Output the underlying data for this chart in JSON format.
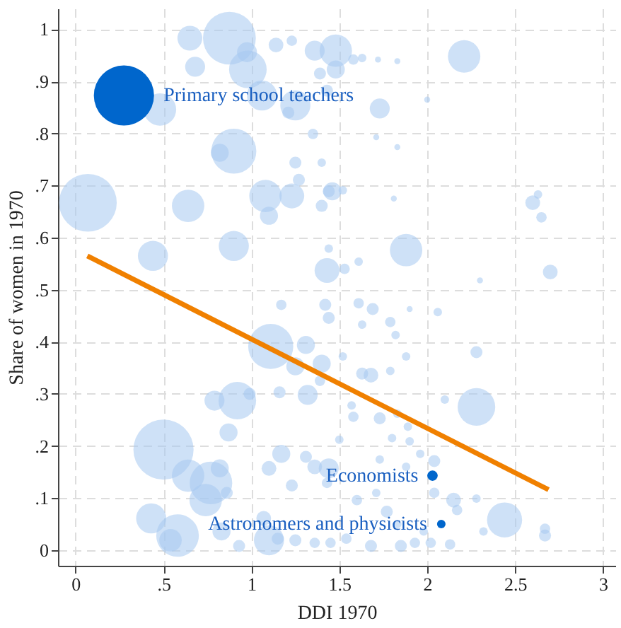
{
  "chart_data": {
    "type": "bubble",
    "xlabel": "DDI 1970",
    "ylabel": "Share of women in 1970",
    "xlim": [
      -0.1,
      3.07
    ],
    "ylim": [
      -0.03,
      1.04
    ],
    "xticks": [
      0,
      {
        "value": 0.5,
        "label": ".5"
      },
      1,
      1.5,
      2,
      2.5,
      3
    ],
    "yticks": [
      0,
      {
        "value": 0.1,
        "label": ".1"
      },
      {
        "value": 0.2,
        "label": ".2"
      },
      {
        "value": 0.3,
        "label": ".3"
      },
      {
        "value": 0.4,
        "label": ".4"
      },
      {
        "value": 0.5,
        "label": ".5"
      },
      {
        "value": 0.6,
        "label": ".6"
      },
      {
        "value": 0.7,
        "label": ".7"
      },
      {
        "value": 0.8,
        "label": ".8"
      },
      {
        "value": 0.9,
        "label": ".9"
      },
      1
    ],
    "grid": true,
    "marker": "circle",
    "series": [
      {
        "color": "#a6c8f0",
        "x": [
          0.65,
          0.875,
          0.68,
          0.975,
          0.98,
          1.14,
          1.23,
          1.36,
          0.48,
          1.06,
          1.25,
          0.9,
          0.82,
          1.25,
          1.35,
          1.4,
          1.27,
          0.07,
          0.64,
          1.08,
          1.23,
          1.1,
          1.4,
          1.44,
          0.44,
          0.9,
          1.44,
          1.43,
          1.39,
          1.43,
          1.21,
          1.48,
          1.48,
          1.58,
          1.63,
          1.72,
          1.83,
          2.21,
          1.73,
          1.71,
          1.83,
          2.0,
          1.46,
          1.52,
          1.81,
          2.6,
          2.63,
          2.65,
          1.88,
          1.61,
          1.53,
          2.7,
          2.3,
          1.17,
          1.42,
          1.44,
          1.11,
          1.31,
          1.25,
          1.4,
          1.39,
          1.16,
          1.32,
          0.92,
          0.79,
          0.99,
          0.87,
          0.5,
          0.64,
          0.82,
          0.77,
          0.74,
          0.86,
          1.17,
          1.1,
          1.31,
          1.36,
          1.23,
          1.43,
          0.43,
          0.58,
          0.54,
          0.83,
          0.93,
          1.07,
          1.1,
          1.15,
          1.25,
          1.36,
          1.61,
          1.69,
          1.9,
          2.06,
          1.63,
          1.79,
          1.82,
          2.28,
          1.88,
          1.52,
          1.63,
          1.68,
          1.79,
          2.1,
          2.28,
          1.57,
          1.73,
          1.58,
          1.83,
          1.89,
          1.8,
          1.9,
          1.5,
          1.44,
          1.96,
          1.73,
          2.04,
          1.88,
          2.04,
          2.15,
          2.17,
          2.28,
          2.44,
          2.67,
          2.67,
          2.32,
          1.98,
          1.83,
          1.77,
          1.6,
          1.71,
          1.93,
          1.85,
          1.68,
          2.13,
          2.02,
          1.54,
          1.45
        ],
        "values": [
          0.983,
          0.983,
          0.928,
          0.956,
          0.923,
          0.97,
          0.978,
          0.959,
          0.846,
          0.873,
          0.854,
          0.766,
          0.763,
          0.744,
          0.799,
          0.744,
          0.711,
          0.667,
          0.661,
          0.68,
          0.68,
          0.642,
          0.661,
          0.689,
          0.565,
          0.584,
          0.579,
          0.537,
          0.915,
          0.882,
          0.84,
          0.959,
          0.923,
          0.942,
          0.945,
          0.942,
          0.939,
          0.948,
          0.848,
          0.793,
          0.774,
          0.865,
          0.689,
          0.691,
          0.675,
          0.667,
          0.683,
          0.639,
          0.576,
          0.554,
          0.54,
          0.534,
          0.518,
          0.471,
          0.471,
          0.446,
          0.391,
          0.394,
          0.353,
          0.358,
          0.325,
          0.303,
          0.298,
          0.287,
          0.287,
          0.3,
          0.226,
          0.193,
          0.143,
          0.157,
          0.129,
          0.096,
          0.11,
          0.185,
          0.157,
          0.179,
          0.16,
          0.124,
          0.129,
          0.061,
          0.028,
          0.019,
          0.036,
          0.008,
          0.061,
          0.019,
          0.022,
          0.019,
          0.014,
          0.474,
          0.463,
          0.463,
          0.457,
          0.433,
          0.438,
          0.413,
          0.38,
          0.372,
          0.372,
          0.339,
          0.336,
          0.344,
          0.289,
          0.275,
          0.278,
          0.253,
          0.256,
          0.262,
          0.237,
          0.215,
          0.209,
          0.212,
          0.157,
          0.185,
          0.174,
          0.171,
          0.16,
          0.11,
          0.096,
          0.077,
          0.099,
          0.058,
          0.041,
          0.028,
          0.036,
          0.036,
          0.05,
          0.074,
          0.096,
          0.11,
          0.014,
          0.008,
          0.008,
          0.011,
          0.014,
          0.022,
          0.014
        ],
        "sizes": [
          0.17,
          0.77,
          0.11,
          0.11,
          0.39,
          0.06,
          0.03,
          0.11,
          0.29,
          0.25,
          0.25,
          0.56,
          0.09,
          0.04,
          0.03,
          0.02,
          0.04,
          0.92,
          0.29,
          0.29,
          0.17,
          0.09,
          0.04,
          0.04,
          0.25,
          0.25,
          0.02,
          0.17,
          0.04,
          0.04,
          0.04,
          0.29,
          0.09,
          0.03,
          0.02,
          0.01,
          0.01,
          0.29,
          0.11,
          0.01,
          0.01,
          0.01,
          0.09,
          0.02,
          0.01,
          0.06,
          0.02,
          0.03,
          0.29,
          0.02,
          0.03,
          0.06,
          0.01,
          0.03,
          0.04,
          0.04,
          0.56,
          0.09,
          0.09,
          0.09,
          0.03,
          0.04,
          0.11,
          0.39,
          0.11,
          0.04,
          0.09,
          1.0,
          0.29,
          0.09,
          0.5,
          0.29,
          0.04,
          0.09,
          0.06,
          0.04,
          0.06,
          0.04,
          0.03,
          0.25,
          0.5,
          0.14,
          0.09,
          0.04,
          0.06,
          0.25,
          0.04,
          0.04,
          0.03,
          0.03,
          0.04,
          0.01,
          0.02,
          0.02,
          0.03,
          0.02,
          0.04,
          0.02,
          0.02,
          0.04,
          0.06,
          0.02,
          0.02,
          0.39,
          0.02,
          0.04,
          0.03,
          0.02,
          0.02,
          0.02,
          0.02,
          0.02,
          0.11,
          0.02,
          0.02,
          0.04,
          0.02,
          0.03,
          0.06,
          0.03,
          0.02,
          0.34,
          0.03,
          0.04,
          0.02,
          0.02,
          0.02,
          0.04,
          0.03,
          0.02,
          0.03,
          0.04,
          0.04,
          0.03,
          0.03,
          0.03,
          0.03
        ]
      },
      {
        "color": "#0066cc",
        "x": [
          0.275,
          2.03,
          2.08
        ],
        "values": [
          0.873,
          0.143,
          0.05
        ],
        "sizes": [
          1.0,
          0.03,
          0.02
        ]
      },
      {
        "type": "line",
        "marker": "none",
        "color": "#f08000",
        "x": [
          0.067,
          2.69
        ],
        "values": [
          0.565,
          0.116
        ]
      }
    ],
    "annotations": [
      {
        "text": "Primary school teachers",
        "x": 0.275,
        "y": 0.873
      },
      {
        "text": "Economists",
        "x": 2.03,
        "y": 0.143
      },
      {
        "text": "Astronomers and physicists",
        "x": 2.08,
        "y": 0.05
      }
    ]
  }
}
